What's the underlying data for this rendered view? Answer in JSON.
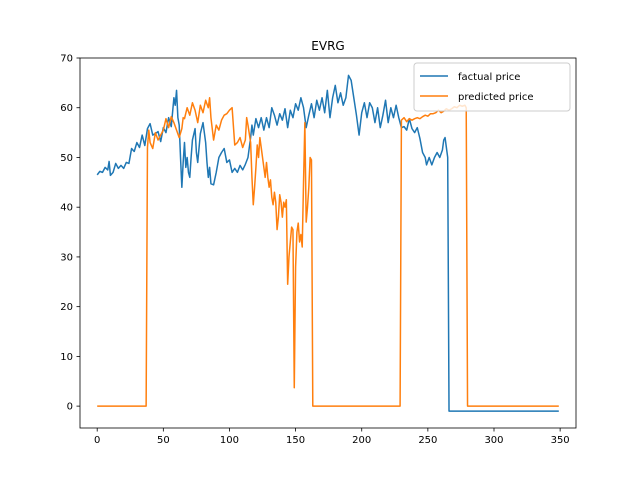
{
  "chart_data": {
    "type": "line",
    "title": "EVRG",
    "xlabel": "",
    "ylabel": "",
    "xlim": [
      -13,
      362
    ],
    "ylim": [
      -4.4,
      70
    ],
    "xticks": [
      0,
      50,
      100,
      150,
      200,
      250,
      300,
      350
    ],
    "yticks": [
      0,
      10,
      20,
      30,
      40,
      50,
      60,
      70
    ],
    "grid": false,
    "legend": {
      "position": "top-right"
    },
    "series": [
      {
        "name": "factual price",
        "color": "#1f77b4",
        "points": [
          [
            0,
            46.5
          ],
          [
            2,
            47.2
          ],
          [
            4,
            47.0
          ],
          [
            6,
            48.0
          ],
          [
            8,
            47.5
          ],
          [
            9,
            49.2
          ],
          [
            10,
            46.4
          ],
          [
            12,
            47.0
          ],
          [
            14,
            48.8
          ],
          [
            16,
            47.8
          ],
          [
            18,
            48.4
          ],
          [
            20,
            47.8
          ],
          [
            22,
            49.0
          ],
          [
            24,
            48.8
          ],
          [
            26,
            51.8
          ],
          [
            28,
            51.2
          ],
          [
            30,
            53.0
          ],
          [
            32,
            52.0
          ],
          [
            34,
            54.5
          ],
          [
            36,
            52.4
          ],
          [
            38,
            55.8
          ],
          [
            40,
            56.8
          ],
          [
            42,
            54.5
          ],
          [
            44,
            54.8
          ],
          [
            46,
            55.2
          ],
          [
            48,
            53.2
          ],
          [
            50,
            56.0
          ],
          [
            52,
            55.0
          ],
          [
            54,
            58.0
          ],
          [
            56,
            56.2
          ],
          [
            58,
            62.0
          ],
          [
            59,
            60.5
          ],
          [
            60,
            63.5
          ],
          [
            61,
            58.0
          ],
          [
            62,
            56.5
          ],
          [
            63,
            50.0
          ],
          [
            64,
            44.0
          ],
          [
            65,
            49.0
          ],
          [
            66,
            53.0
          ],
          [
            67,
            48.0
          ],
          [
            68,
            50.0
          ],
          [
            69,
            47.0
          ],
          [
            70,
            46.0
          ],
          [
            71,
            50.0
          ],
          [
            72,
            53.5
          ],
          [
            74,
            55.8
          ],
          [
            75,
            51.0
          ],
          [
            76,
            49.0
          ],
          [
            78,
            54.8
          ],
          [
            80,
            57.0
          ],
          [
            82,
            53.0
          ],
          [
            83,
            49.0
          ],
          [
            84,
            46.0
          ],
          [
            85,
            48.0
          ],
          [
            86,
            44.7
          ],
          [
            88,
            44.5
          ],
          [
            90,
            47.0
          ],
          [
            92,
            50.0
          ],
          [
            94,
            51.0
          ],
          [
            96,
            51.8
          ],
          [
            98,
            49.0
          ],
          [
            100,
            49.5
          ],
          [
            102,
            47.0
          ],
          [
            104,
            47.8
          ],
          [
            106,
            47.0
          ],
          [
            108,
            48.4
          ],
          [
            110,
            47.5
          ],
          [
            112,
            48.6
          ],
          [
            114,
            50.0
          ],
          [
            116,
            54.0
          ],
          [
            117,
            56.5
          ],
          [
            118,
            54.5
          ],
          [
            120,
            57.8
          ],
          [
            122,
            56.0
          ],
          [
            124,
            58.0
          ],
          [
            126,
            55.5
          ],
          [
            128,
            58.0
          ],
          [
            130,
            56.0
          ],
          [
            132,
            60.0
          ],
          [
            134,
            58.5
          ],
          [
            136,
            56.5
          ],
          [
            138,
            58.8
          ],
          [
            140,
            57.5
          ],
          [
            142,
            59.8
          ],
          [
            144,
            56.0
          ],
          [
            146,
            59.5
          ],
          [
            148,
            58.0
          ],
          [
            150,
            60.8
          ],
          [
            152,
            59.5
          ],
          [
            154,
            62.0
          ],
          [
            156,
            60.0
          ],
          [
            158,
            56.0
          ],
          [
            160,
            58.5
          ],
          [
            162,
            60.8
          ],
          [
            164,
            58.0
          ],
          [
            166,
            61.5
          ],
          [
            168,
            59.5
          ],
          [
            170,
            62.0
          ],
          [
            172,
            59.0
          ],
          [
            174,
            63.5
          ],
          [
            176,
            58.0
          ],
          [
            178,
            62.0
          ],
          [
            180,
            64.5
          ],
          [
            182,
            61.0
          ],
          [
            184,
            63.0
          ],
          [
            186,
            60.5
          ],
          [
            188,
            62.0
          ],
          [
            190,
            66.5
          ],
          [
            192,
            65.5
          ],
          [
            194,
            62.0
          ],
          [
            196,
            58.5
          ],
          [
            198,
            54.5
          ],
          [
            200,
            59.0
          ],
          [
            202,
            61.0
          ],
          [
            204,
            58.0
          ],
          [
            206,
            61.0
          ],
          [
            208,
            60.0
          ],
          [
            210,
            57.0
          ],
          [
            212,
            60.0
          ],
          [
            214,
            56.0
          ],
          [
            216,
            58.5
          ],
          [
            218,
            61.5
          ],
          [
            220,
            57.0
          ],
          [
            222,
            60.0
          ],
          [
            224,
            58.0
          ],
          [
            226,
            60.5
          ],
          [
            228,
            58.0
          ],
          [
            230,
            56.0
          ],
          [
            232,
            56.2
          ],
          [
            234,
            55.5
          ],
          [
            236,
            57.8
          ],
          [
            238,
            55.8
          ],
          [
            240,
            55.0
          ],
          [
            242,
            56.0
          ],
          [
            244,
            53.8
          ],
          [
            246,
            51.0
          ],
          [
            248,
            50.0
          ],
          [
            249,
            48.5
          ],
          [
            251,
            50.0
          ],
          [
            253,
            48.5
          ],
          [
            255,
            50.0
          ],
          [
            257,
            51.0
          ],
          [
            259,
            50.0
          ],
          [
            261,
            51.5
          ],
          [
            262,
            53.5
          ],
          [
            263,
            54.0
          ],
          [
            264,
            52.0
          ],
          [
            265,
            50.0
          ],
          [
            266,
            -1.0
          ],
          [
            280,
            -1.0
          ],
          [
            300,
            -1.0
          ],
          [
            320,
            -1.0
          ],
          [
            340,
            -1.0
          ],
          [
            349,
            -1.0
          ]
        ]
      },
      {
        "name": "predicted price",
        "color": "#ff7f0e",
        "points": [
          [
            0,
            0
          ],
          [
            20,
            0
          ],
          [
            37,
            0
          ],
          [
            38,
            52.0
          ],
          [
            39,
            55.5
          ],
          [
            40,
            53.0
          ],
          [
            42,
            51.8
          ],
          [
            44,
            55.0
          ],
          [
            46,
            53.5
          ],
          [
            48,
            54.5
          ],
          [
            50,
            55.5
          ],
          [
            52,
            57.8
          ],
          [
            54,
            56.0
          ],
          [
            56,
            58.2
          ],
          [
            58,
            57.0
          ],
          [
            60,
            55.5
          ],
          [
            62,
            54.0
          ],
          [
            64,
            55.8
          ],
          [
            65,
            58.0
          ],
          [
            66,
            57.8
          ],
          [
            68,
            60.0
          ],
          [
            70,
            58.5
          ],
          [
            72,
            61.0
          ],
          [
            74,
            59.5
          ],
          [
            76,
            57.0
          ],
          [
            78,
            60.5
          ],
          [
            80,
            59.0
          ],
          [
            82,
            61.5
          ],
          [
            84,
            60.0
          ],
          [
            85,
            62.0
          ],
          [
            86,
            58.0
          ],
          [
            88,
            53.5
          ],
          [
            90,
            56.5
          ],
          [
            92,
            55.5
          ],
          [
            94,
            57.5
          ],
          [
            96,
            58.5
          ],
          [
            98,
            58.8
          ],
          [
            100,
            59.5
          ],
          [
            102,
            60.0
          ],
          [
            104,
            52.5
          ],
          [
            106,
            53.0
          ],
          [
            108,
            54.0
          ],
          [
            110,
            52.0
          ],
          [
            112,
            53.5
          ],
          [
            113,
            58.0
          ],
          [
            114,
            56.5
          ],
          [
            116,
            53.0
          ],
          [
            117,
            46.0
          ],
          [
            118,
            40.5
          ],
          [
            119,
            44.0
          ],
          [
            120,
            48.0
          ],
          [
            121,
            52.5
          ],
          [
            122,
            50.0
          ],
          [
            123,
            54.0
          ],
          [
            124,
            52.0
          ],
          [
            125,
            50.0
          ],
          [
            126,
            48.0
          ],
          [
            127,
            46.0
          ],
          [
            128,
            49.0
          ],
          [
            129,
            46.0
          ],
          [
            130,
            44.0
          ],
          [
            131,
            45.5
          ],
          [
            132,
            42.0
          ],
          [
            133,
            40.5
          ],
          [
            134,
            43.0
          ],
          [
            135,
            41.0
          ],
          [
            136,
            35.5
          ],
          [
            137,
            38.0
          ],
          [
            138,
            42.5
          ],
          [
            139,
            41.0
          ],
          [
            140,
            38.0
          ],
          [
            141,
            41.0
          ],
          [
            142,
            40.0
          ],
          [
            143,
            41.5
          ],
          [
            144,
            24.5
          ],
          [
            145,
            30.0
          ],
          [
            146,
            33.0
          ],
          [
            147,
            36.0
          ],
          [
            148,
            35.5
          ],
          [
            149,
            3.7
          ],
          [
            150,
            28.0
          ],
          [
            151,
            35.0
          ],
          [
            152,
            36.8
          ],
          [
            153,
            33.0
          ],
          [
            154,
            34.5
          ],
          [
            155,
            32.0
          ],
          [
            156,
            45.0
          ],
          [
            157,
            57.0
          ],
          [
            158,
            37.0
          ],
          [
            159,
            40.0
          ],
          [
            160,
            44.0
          ],
          [
            161,
            50.0
          ],
          [
            162,
            49.5
          ],
          [
            163,
            0
          ],
          [
            180,
            0
          ],
          [
            200,
            0
          ],
          [
            229,
            0
          ],
          [
            230,
            57.5
          ],
          [
            232,
            58.0
          ],
          [
            234,
            57.2
          ],
          [
            236,
            57.8
          ],
          [
            238,
            57.5
          ],
          [
            240,
            57.8
          ],
          [
            242,
            58.0
          ],
          [
            244,
            57.8
          ],
          [
            246,
            58.2
          ],
          [
            248,
            58.5
          ],
          [
            250,
            58.3
          ],
          [
            252,
            58.8
          ],
          [
            254,
            58.8
          ],
          [
            256,
            59.0
          ],
          [
            258,
            59.5
          ],
          [
            260,
            59.0
          ],
          [
            262,
            59.3
          ],
          [
            264,
            59.8
          ],
          [
            266,
            59.5
          ],
          [
            268,
            59.8
          ],
          [
            270,
            60.2
          ],
          [
            272,
            60.0
          ],
          [
            274,
            60.5
          ],
          [
            276,
            60.3
          ],
          [
            278,
            60.5
          ],
          [
            279,
            60.0
          ],
          [
            280,
            0
          ],
          [
            300,
            0
          ],
          [
            320,
            0
          ],
          [
            349,
            0
          ]
        ]
      }
    ]
  }
}
